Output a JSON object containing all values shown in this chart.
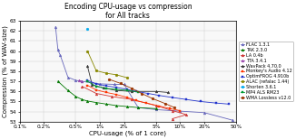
{
  "title": "Encoding CPU-usage vs compression\nfor All tracks",
  "xlabel": "CPU-usage (% of 1 core)",
  "ylabel": "Compression (% of WAV-size)",
  "ylim": [
    53,
    63
  ],
  "series": [
    {
      "name": "FLAC 1.3.1",
      "color": "#6666bb",
      "marker": "^",
      "markersize": 2.0,
      "linewidth": 0.6,
      "linestyle": "-",
      "points": [
        [
          0.0028,
          62.4
        ],
        [
          0.003,
          60.1
        ],
        [
          0.0032,
          59.6
        ],
        [
          0.004,
          57.4
        ],
        [
          0.005,
          57.1
        ],
        [
          0.006,
          57.0
        ],
        [
          0.008,
          56.85
        ],
        [
          0.01,
          56.75
        ],
        [
          0.015,
          56.7
        ],
        [
          0.02,
          56.7
        ],
        [
          0.03,
          54.4
        ],
        [
          0.05,
          54.2
        ],
        [
          0.1,
          54.05
        ],
        [
          0.2,
          53.9
        ],
        [
          0.45,
          53.15
        ]
      ]
    },
    {
      "name": "TAK 2.3.0",
      "color": "#007700",
      "marker": "^",
      "markersize": 2.0,
      "linewidth": 0.6,
      "linestyle": "-",
      "points": [
        [
          0.003,
          57.0
        ],
        [
          0.004,
          56.1
        ],
        [
          0.005,
          55.5
        ],
        [
          0.006,
          55.2
        ],
        [
          0.007,
          55.05
        ],
        [
          0.009,
          54.9
        ],
        [
          0.012,
          54.75
        ],
        [
          0.016,
          54.6
        ],
        [
          0.022,
          54.5
        ],
        [
          0.03,
          54.4
        ],
        [
          0.05,
          54.3
        ]
      ]
    },
    {
      "name": "LA 0.4b",
      "color": "#cc3333",
      "marker": "^",
      "markersize": 2.0,
      "linewidth": 0.6,
      "linestyle": "-",
      "points": [
        [
          0.006,
          56.5
        ],
        [
          0.009,
          55.8
        ],
        [
          0.014,
          55.5
        ],
        [
          0.025,
          55.2
        ],
        [
          0.05,
          54.6
        ],
        [
          0.08,
          54.1
        ],
        [
          0.12,
          53.7
        ],
        [
          0.08,
          53.3
        ]
      ]
    },
    {
      "name": "TTA 3.4.1",
      "color": "#9944aa",
      "marker": "^",
      "markersize": 2.0,
      "linewidth": 0.6,
      "linestyle": "-",
      "points": [
        [
          0.0055,
          57.1
        ],
        [
          0.006,
          57.0
        ]
      ]
    },
    {
      "name": "WavPack 4.70.0",
      "color": "#333333",
      "marker": "^",
      "markersize": 2.0,
      "linewidth": 0.6,
      "linestyle": "-",
      "points": [
        [
          0.007,
          58.5
        ],
        [
          0.008,
          56.65
        ],
        [
          0.011,
          56.35
        ],
        [
          0.016,
          56.1
        ],
        [
          0.025,
          56.0
        ],
        [
          0.05,
          56.0
        ],
        [
          0.07,
          55.9
        ]
      ]
    },
    {
      "name": "Monkey's Audio 4.12",
      "color": "#ff3300",
      "marker": "s",
      "markersize": 2.0,
      "linewidth": 0.6,
      "linestyle": "-",
      "points": [
        [
          0.007,
          56.6
        ],
        [
          0.009,
          56.15
        ],
        [
          0.012,
          55.9
        ],
        [
          0.016,
          55.7
        ],
        [
          0.022,
          55.4
        ],
        [
          0.028,
          55.1
        ],
        [
          0.038,
          54.85
        ],
        [
          0.055,
          54.55
        ],
        [
          0.075,
          54.3
        ],
        [
          0.1,
          54.1
        ]
      ]
    },
    {
      "name": "OptimFROG 4.910b",
      "color": "#2233cc",
      "marker": "s",
      "markersize": 2.0,
      "linewidth": 0.6,
      "linestyle": "-",
      "points": [
        [
          0.007,
          57.1
        ],
        [
          0.009,
          56.75
        ],
        [
          0.012,
          56.55
        ],
        [
          0.016,
          56.4
        ],
        [
          0.022,
          56.2
        ],
        [
          0.028,
          56.0
        ],
        [
          0.04,
          55.8
        ],
        [
          0.055,
          55.6
        ],
        [
          0.08,
          55.4
        ],
        [
          0.12,
          55.2
        ],
        [
          0.18,
          55.0
        ],
        [
          0.28,
          54.85
        ],
        [
          0.4,
          54.75
        ]
      ]
    },
    {
      "name": "ALAC (refalac 1.44)",
      "color": "#888800",
      "marker": "o",
      "markersize": 2.0,
      "linewidth": 0.6,
      "linestyle": "-",
      "points": [
        [
          0.007,
          60.0
        ],
        [
          0.009,
          58.05
        ],
        [
          0.012,
          57.8
        ],
        [
          0.016,
          57.65
        ],
        [
          0.022,
          57.35
        ]
      ]
    },
    {
      "name": "Shorten 3.6.1",
      "color": "#00aaee",
      "marker": "o",
      "markersize": 2.0,
      "linewidth": 0.6,
      "linestyle": "-",
      "points": [
        [
          0.007,
          62.2
        ]
      ]
    },
    {
      "name": "MP4 ALS RM23",
      "color": "#009933",
      "marker": "s",
      "markersize": 2.0,
      "linewidth": 0.6,
      "linestyle": "-",
      "points": [
        [
          0.007,
          57.0
        ],
        [
          0.009,
          56.5
        ],
        [
          0.012,
          56.3
        ],
        [
          0.016,
          56.2
        ],
        [
          0.022,
          56.1
        ],
        [
          0.03,
          55.95
        ]
      ]
    },
    {
      "name": "WMA Lossless v12.0",
      "color": "#993300",
      "marker": "o",
      "markersize": 2.0,
      "linewidth": 0.6,
      "linestyle": "-",
      "points": [
        [
          0.013,
          57.2
        ],
        [
          0.018,
          56.8
        ],
        [
          0.025,
          56.3
        ],
        [
          0.033,
          55.8
        ],
        [
          0.045,
          55.3
        ],
        [
          0.065,
          54.8
        ],
        [
          0.085,
          54.4
        ]
      ]
    }
  ],
  "xtick_vals": [
    0.001,
    0.002,
    0.005,
    0.01,
    0.02,
    0.05,
    0.1,
    0.2,
    0.5
  ],
  "xtick_labs": [
    "0.1%",
    "0.2%",
    "0.5%",
    "1%",
    "2%",
    "5%",
    "10%",
    "20%",
    "50%"
  ],
  "ytick_vals": [
    53,
    54,
    55,
    56,
    57,
    58,
    59,
    60,
    61,
    62,
    63
  ],
  "grid_color": "#cccccc",
  "bg_color": "#f8f8f8",
  "title_fontsize": 5.5,
  "label_fontsize": 5.0,
  "tick_fontsize": 4.2,
  "legend_fontsize": 3.5
}
